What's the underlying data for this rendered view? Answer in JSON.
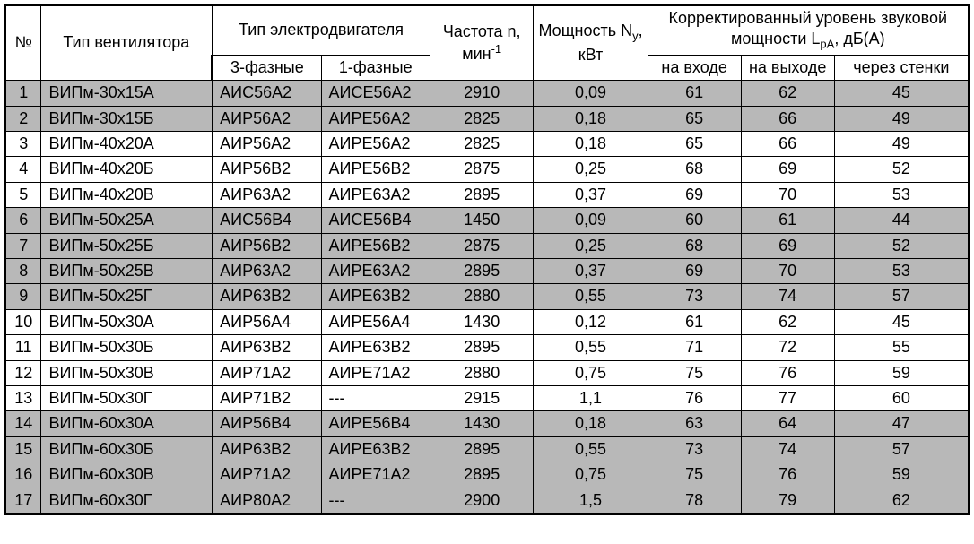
{
  "table": {
    "type": "table",
    "background_color": "#ffffff",
    "shaded_color": "#b8b8b8",
    "border_color": "#000000",
    "font_family": "Arial",
    "font_size_pt": 14,
    "column_widths_pct": [
      3.5,
      16.5,
      10.5,
      10.5,
      10,
      11,
      9,
      9,
      13
    ],
    "headers": {
      "num": "№",
      "fan_type": "Тип вентилятора",
      "motor_type": "Тип электродвигателя",
      "phase3": "3-фазные",
      "phase1": "1-фазные",
      "freq_html": "Частота n, мин<sup>-1</sup>",
      "power_html": "Мощность N<sub>y</sub>, кВт",
      "sound_html": "Корректированный уровень звуковой мощности L<sub>pA</sub>, дБ(А)",
      "inlet": "на входе",
      "outlet": "на выходе",
      "walls": "через стенки"
    },
    "shaded_rows": [
      0,
      1,
      5,
      6,
      7,
      8,
      13,
      14,
      15,
      16
    ],
    "rows": [
      [
        "1",
        "ВИПм-30х15А",
        "АИС56А2",
        "АИСЕ56А2",
        "2910",
        "0,09",
        "61",
        "62",
        "45"
      ],
      [
        "2",
        "ВИПм-30х15Б",
        "АИР56А2",
        "АИРЕ56А2",
        "2825",
        "0,18",
        "65",
        "66",
        "49"
      ],
      [
        "3",
        "ВИПм-40х20А",
        "АИР56А2",
        "АИРЕ56А2",
        "2825",
        "0,18",
        "65",
        "66",
        "49"
      ],
      [
        "4",
        "ВИПм-40х20Б",
        "АИР56В2",
        "АИРЕ56В2",
        "2875",
        "0,25",
        "68",
        "69",
        "52"
      ],
      [
        "5",
        "ВИПм-40х20В",
        "АИР63А2",
        "АИРЕ63А2",
        "2895",
        "0,37",
        "69",
        "70",
        "53"
      ],
      [
        "6",
        "ВИПм-50х25А",
        "АИС56В4",
        "АИСЕ56В4",
        "1450",
        "0,09",
        "60",
        "61",
        "44"
      ],
      [
        "7",
        "ВИПм-50х25Б",
        "АИР56В2",
        "АИРЕ56В2",
        "2875",
        "0,25",
        "68",
        "69",
        "52"
      ],
      [
        "8",
        "ВИПм-50х25В",
        "АИР63А2",
        "АИРЕ63А2",
        "2895",
        "0,37",
        "69",
        "70",
        "53"
      ],
      [
        "9",
        "ВИПм-50х25Г",
        "АИР63В2",
        "АИРЕ63В2",
        "2880",
        "0,55",
        "73",
        "74",
        "57"
      ],
      [
        "10",
        "ВИПм-50х30А",
        "АИР56А4",
        "АИРЕ56А4",
        "1430",
        "0,12",
        "61",
        "62",
        "45"
      ],
      [
        "11",
        "ВИПм-50х30Б",
        "АИР63В2",
        "АИРЕ63В2",
        "2895",
        "0,55",
        "71",
        "72",
        "55"
      ],
      [
        "12",
        "ВИПм-50х30В",
        "АИР71А2",
        "АИРЕ71А2",
        "2880",
        "0,75",
        "75",
        "76",
        "59"
      ],
      [
        "13",
        "ВИПм-50х30Г",
        "АИР71В2",
        "---",
        "2915",
        "1,1",
        "76",
        "77",
        "60"
      ],
      [
        "14",
        "ВИПм-60х30А",
        "АИР56В4",
        "АИРЕ56В4",
        "1430",
        "0,18",
        "63",
        "64",
        "47"
      ],
      [
        "15",
        "ВИПм-60х30Б",
        "АИР63В2",
        "АИРЕ63В2",
        "2895",
        "0,55",
        "73",
        "74",
        "57"
      ],
      [
        "16",
        "ВИПм-60х30В",
        "АИР71А2",
        "АИРЕ71А2",
        "2895",
        "0,75",
        "75",
        "76",
        "59"
      ],
      [
        "17",
        "ВИПм-60х30Г",
        "АИР80А2",
        "---",
        "2900",
        "1,5",
        "78",
        "79",
        "62"
      ]
    ]
  }
}
